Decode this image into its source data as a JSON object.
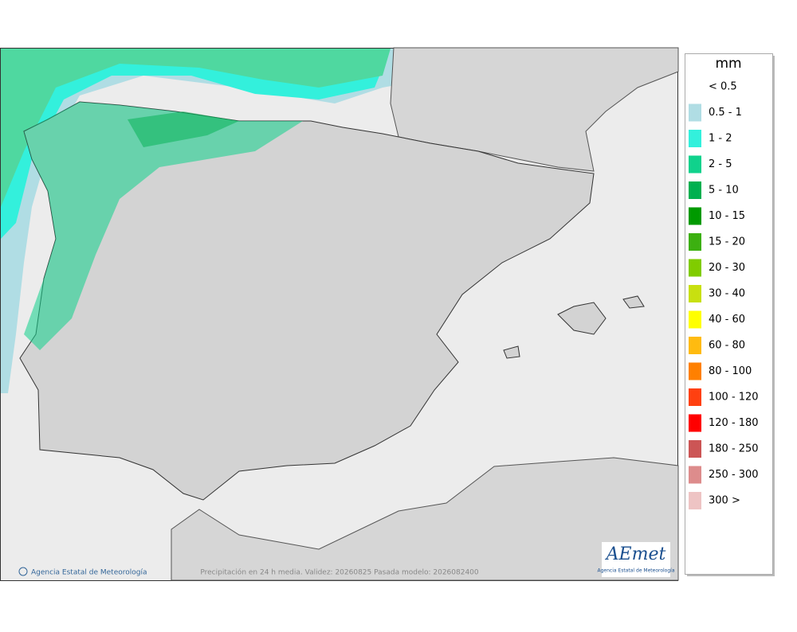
{
  "legend": {
    "title": "mm",
    "items": [
      {
        "label": "< 0.5",
        "color": "#ffffff"
      },
      {
        "label": "0.5 - 1",
        "color": "#b0dde4"
      },
      {
        "label": "1 - 2",
        "color": "#33f0dc"
      },
      {
        "label": "2 - 5",
        "color": "#10d28c"
      },
      {
        "label": "5 - 10",
        "color": "#00b050"
      },
      {
        "label": "10 - 15",
        "color": "#009a00"
      },
      {
        "label": "15 - 20",
        "color": "#3cb010"
      },
      {
        "label": "20 - 30",
        "color": "#80cc00"
      },
      {
        "label": "30 - 40",
        "color": "#c8e010"
      },
      {
        "label": "40 - 60",
        "color": "#ffff00"
      },
      {
        "label": "60 - 80",
        "color": "#ffbb10"
      },
      {
        "label": "80 - 100",
        "color": "#ff8000"
      },
      {
        "label": "100 - 120",
        "color": "#ff4010"
      },
      {
        "label": "120 - 180",
        "color": "#ff0000"
      },
      {
        "label": "180 - 250",
        "color": "#cc5555"
      },
      {
        "label": "250 - 300",
        "color": "#dd8c8c"
      },
      {
        "label": "300 >",
        "color": "#eec4c4"
      }
    ]
  },
  "footer": {
    "credit": "Agencia Estatal de Meteorología",
    "caption": "Precipitación en 24 h media. Validez: 20260825 Pasada modelo: 2026082400"
  },
  "logo": {
    "name": "AEmet",
    "subtitle": "Agencia Estatal de Meteorología"
  }
}
